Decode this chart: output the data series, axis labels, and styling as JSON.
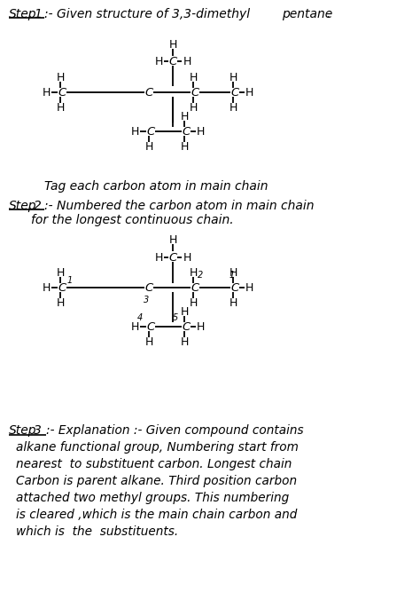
{
  "background_color": "#ffffff",
  "page_width": 4.74,
  "page_height": 6.85,
  "dpi": 100,
  "step3_lines": [
    "alkane functional group, Numbering start from",
    "nearest  to substituent carbon. Longest chain",
    "Carbon is parent alkane. Third position carbon",
    "attached two methyl groups. This numbering",
    "is cleared ,which is the main chain carbon and",
    "which is  the  substituents."
  ]
}
